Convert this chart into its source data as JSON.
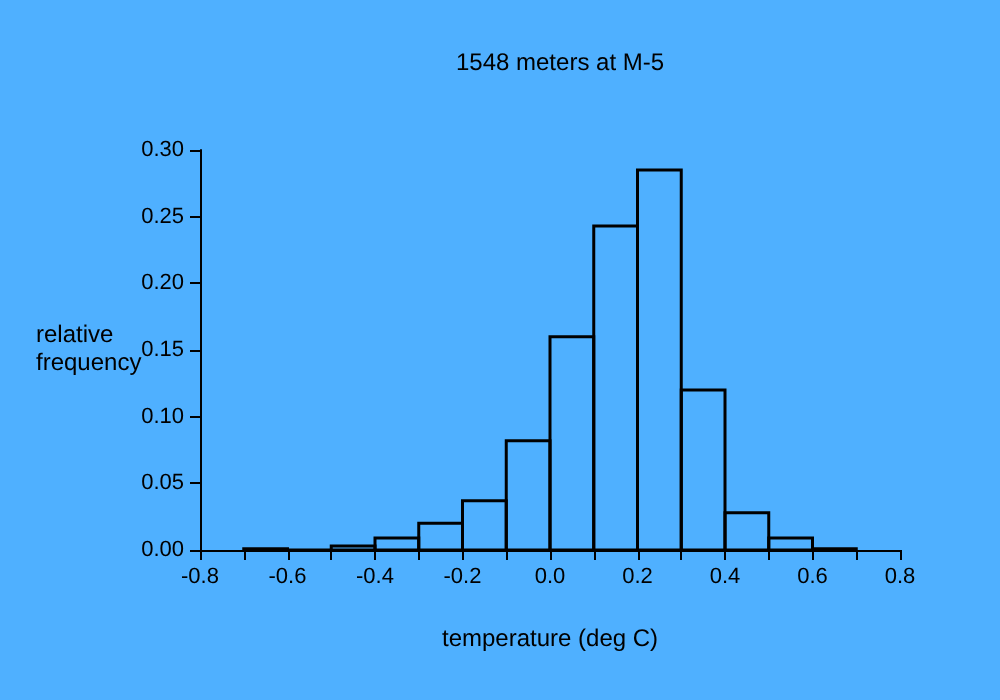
{
  "chart_data": {
    "type": "histogram",
    "title": "1548 meters at M-5",
    "xlabel": "temperature (deg C)",
    "ylabel": "relative\nfrequency",
    "bins": [
      -0.7,
      -0.6,
      -0.5,
      -0.4,
      -0.3,
      -0.2,
      -0.1,
      0,
      0.1,
      0.2,
      0.3,
      0.4,
      0.5,
      0.6,
      0.7
    ],
    "values": [
      0.001,
      0,
      0.003,
      0.009,
      0.02,
      0.037,
      0.082,
      0.16,
      0.243,
      0.285,
      0.12,
      0.028,
      0.009,
      0.001
    ],
    "color": "#000000",
    "xlim": [
      -0.8,
      0.8
    ],
    "xticks": [
      {
        "value": -0.8,
        "label": "-0.8"
      },
      {
        "value": -0.7,
        "label": null
      },
      {
        "value": -0.6,
        "label": "-0.6"
      },
      {
        "value": -0.5,
        "label": null
      },
      {
        "value": -0.4,
        "label": "-0.4"
      },
      {
        "value": -0.3,
        "label": null
      },
      {
        "value": -0.2,
        "label": "-0.2"
      },
      {
        "value": -0.1,
        "label": null
      },
      {
        "value": 0,
        "label": "0.0"
      },
      {
        "value": 0.1,
        "label": null
      },
      {
        "value": 0.2,
        "label": "0.2"
      },
      {
        "value": 0.3,
        "label": null
      },
      {
        "value": 0.4,
        "label": "0.4"
      },
      {
        "value": 0.5,
        "label": null
      },
      {
        "value": 0.6,
        "label": "0.6"
      },
      {
        "value": 0.7,
        "label": null
      },
      {
        "value": 0.8,
        "label": "0.8"
      }
    ],
    "ylim": [
      0,
      0.3
    ],
    "yticks": [
      {
        "value": 0,
        "label": "0.00"
      },
      {
        "value": 0.05,
        "label": "0.05"
      },
      {
        "value": 0.1,
        "label": "0.10"
      },
      {
        "value": 0.15,
        "label": "0.15"
      },
      {
        "value": 0.2,
        "label": "0.20"
      },
      {
        "value": 0.25,
        "label": "0.25"
      },
      {
        "value": 0.3,
        "label": "0.30"
      }
    ],
    "tick_labels": "xy"
  }
}
